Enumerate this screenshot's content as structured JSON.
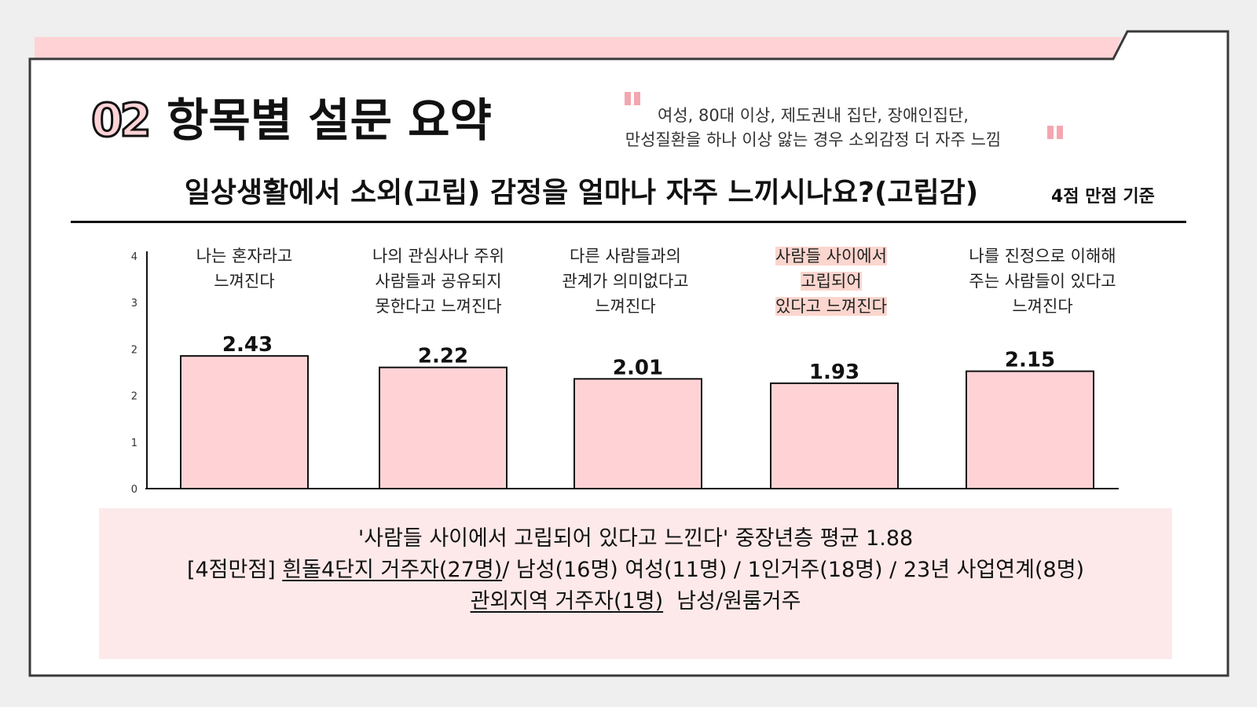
{
  "slide": {
    "number": "02",
    "title": "항목별 설문 요약",
    "quote_lines": [
      "여성, 80대 이상, 제도권내 집단, 장애인집단,",
      "만성질환을 하나 이상 앓는 경우 소외감정 더 자주 느낌"
    ],
    "question": "일상생활에서 소외(고립) 감정을 얼마나 자주 느끼시나요?(고립감)",
    "basis": "4점 만점 기준",
    "colors": {
      "bar": "#ffd3d6",
      "highlight": "#fbd6ce",
      "note_bg": "#fde9ea",
      "accent_strip": "#ffd3d6"
    }
  },
  "chart_data": {
    "type": "bar",
    "categories": [
      [
        "나는 혼자라고",
        "느껴진다"
      ],
      [
        "나의 관심사나 주위",
        "사람들과 공유되지",
        "못한다고 느껴진다"
      ],
      [
        "다른 사람들과의",
        "관계가 의미없다고",
        "느껴진다"
      ],
      [
        "사람들 사이에서",
        "고립되어",
        "있다고 느껴진다"
      ],
      [
        "나를 진정으로 이해해",
        "주는 사람들이 있다고",
        "느껴진다"
      ]
    ],
    "highlight_index": 3,
    "values": [
      2.43,
      2.22,
      2.01,
      1.93,
      2.15
    ],
    "value_labels": [
      "2.43",
      "2.22",
      "2.01",
      "1.93",
      "2.15"
    ],
    "y_ticks": [
      "0",
      "1",
      "2",
      "2",
      "3",
      "4"
    ],
    "ylim": [
      0,
      4
    ],
    "grid": false,
    "legend": "none"
  },
  "note": {
    "line1": "'사람들 사이에서 고립되어 있다고 느낀다' 중장년층 평균 1.88",
    "line2_prefix": "[4점만점] ",
    "line2_underlined": "흰돌4단지 거주자(27명)",
    "line2_rest": "/ 남성(16명) 여성(11명) / 1인거주(18명) / 23년 사업연계(8명)",
    "line3_underlined": "관외지역 거주자(1명)",
    "line3_rest": "  남성/원룸거주"
  }
}
